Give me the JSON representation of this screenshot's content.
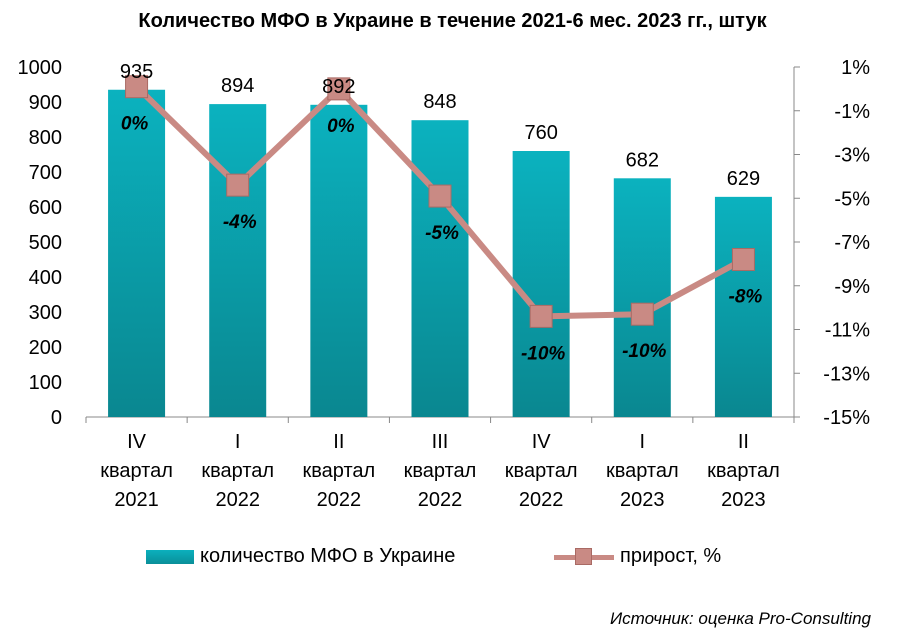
{
  "chart_data": {
    "type": "bar",
    "title": "Количество МФО в Украине в течение 2021-6 мес. 2023 гг., штук",
    "categories": [
      [
        "IV",
        "квартал",
        "2021"
      ],
      [
        "I",
        "квартал",
        "2022"
      ],
      [
        "II",
        "квартал",
        "2022"
      ],
      [
        "III",
        "квартал",
        "2022"
      ],
      [
        "IV",
        "квартал",
        "2022"
      ],
      [
        "I",
        "квартал",
        "2023"
      ],
      [
        "II",
        "квартал",
        "2023"
      ]
    ],
    "series": [
      {
        "name": "количество МФО в Украине",
        "type": "bar",
        "axis": "left",
        "values": [
          935,
          894,
          892,
          848,
          760,
          682,
          629
        ],
        "labels": [
          "935",
          "894",
          "892",
          "848",
          "760",
          "682",
          "629"
        ],
        "color": "#0aa3ae"
      },
      {
        "name": "прирост, %",
        "type": "line",
        "axis": "right",
        "values": [
          0.1,
          -4.4,
          0.0,
          -4.9,
          -10.4,
          -10.3,
          -7.8
        ],
        "labels": [
          "0%",
          "-4%",
          "0%",
          "-5%",
          "-10%",
          "-10%",
          "-8%"
        ],
        "color": "#c98a84"
      }
    ],
    "y_left": {
      "range": [
        0,
        1000
      ],
      "ticks": [
        "1000",
        "900",
        "800",
        "700",
        "600",
        "500",
        "400",
        "300",
        "200",
        "100",
        "0"
      ]
    },
    "y_right": {
      "range": [
        -15,
        1
      ],
      "ticks": [
        "1%",
        "-1%",
        "-3%",
        "-5%",
        "-7%",
        "-9%",
        "-11%",
        "-13%",
        "-15%"
      ]
    },
    "legend_position": "bottom",
    "grid": false,
    "source": "Источник: оценка Pro-Consulting"
  }
}
